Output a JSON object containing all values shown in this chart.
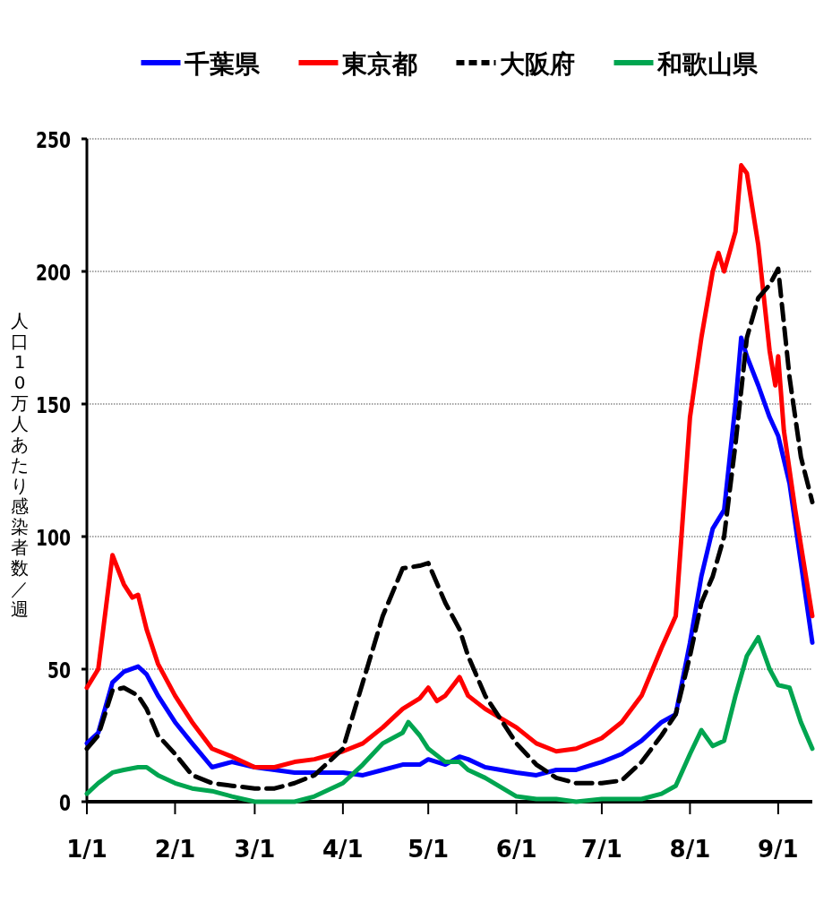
{
  "chart_data": {
    "type": "line",
    "ylabel": "人口10万人あたり感染者数／週",
    "legend": "top",
    "grid": "y",
    "marker": "none",
    "xlim": [
      "--01-01",
      "--09-13"
    ],
    "ylim": [
      0,
      250
    ],
    "xticks": [
      {
        "value": "--01-01",
        "label": "1/1"
      },
      {
        "value": "--02-01",
        "label": "2/1"
      },
      {
        "value": "--03-01",
        "label": "3/1"
      },
      {
        "value": "--04-01",
        "label": "4/1"
      },
      {
        "value": "--05-01",
        "label": "5/1"
      },
      {
        "value": "--06-01",
        "label": "6/1"
      },
      {
        "value": "--07-01",
        "label": "7/1"
      },
      {
        "value": "--08-01",
        "label": "8/1"
      },
      {
        "value": "--09-01",
        "label": "9/1"
      }
    ],
    "yticks": [
      0,
      50,
      100,
      150,
      200,
      250
    ],
    "series": [
      {
        "name": "千葉県",
        "color": "#0000ff",
        "line_style": "solid",
        "x": [
          "--01-01",
          "--01-05",
          "--01-10",
          "--01-14",
          "--01-19",
          "--01-22",
          "--01-26",
          "--02-01",
          "--02-07",
          "--02-14",
          "--02-21",
          "--03-01",
          "--03-08",
          "--03-15",
          "--03-22",
          "--04-01",
          "--04-08",
          "--04-15",
          "--04-22",
          "--04-28",
          "--05-01",
          "--05-07",
          "--05-12",
          "--05-15",
          "--05-21",
          "--06-01",
          "--06-08",
          "--06-15",
          "--06-22",
          "--07-01",
          "--07-08",
          "--07-15",
          "--07-22",
          "--07-27",
          "--08-01",
          "--08-05",
          "--08-09",
          "--08-13",
          "--08-17",
          "--08-19",
          "--08-21",
          "--08-25",
          "--08-29",
          "--09-01",
          "--09-05",
          "--09-09",
          "--09-13"
        ],
        "values": [
          22,
          26,
          45,
          49,
          51,
          48,
          40,
          30,
          22,
          13,
          15,
          13,
          12,
          11,
          11,
          11,
          10,
          12,
          14,
          14,
          16,
          14,
          17,
          16,
          13,
          11,
          10,
          12,
          12,
          15,
          18,
          23,
          30,
          33,
          60,
          85,
          103,
          110,
          150,
          175,
          168,
          157,
          145,
          138,
          120,
          90,
          60
        ]
      },
      {
        "name": "東京都",
        "color": "#ff0000",
        "line_style": "solid",
        "x": [
          "--01-01",
          "--01-05",
          "--01-10",
          "--01-14",
          "--01-17",
          "--01-19",
          "--01-22",
          "--01-26",
          "--02-01",
          "--02-07",
          "--02-14",
          "--02-21",
          "--03-01",
          "--03-08",
          "--03-15",
          "--03-22",
          "--04-01",
          "--04-08",
          "--04-15",
          "--04-22",
          "--04-28",
          "--05-01",
          "--05-04",
          "--05-07",
          "--05-12",
          "--05-15",
          "--05-21",
          "--06-01",
          "--06-08",
          "--06-15",
          "--06-22",
          "--07-01",
          "--07-08",
          "--07-15",
          "--07-22",
          "--07-27",
          "--08-01",
          "--08-05",
          "--08-09",
          "--08-11",
          "--08-13",
          "--08-17",
          "--08-19",
          "--08-21",
          "--08-25",
          "--08-29",
          "--08-31",
          "--09-01",
          "--09-03",
          "--09-07",
          "--09-13"
        ],
        "values": [
          43,
          50,
          93,
          82,
          77,
          78,
          65,
          52,
          40,
          30,
          20,
          17,
          13,
          13,
          15,
          16,
          19,
          22,
          28,
          35,
          39,
          43,
          38,
          40,
          47,
          40,
          35,
          28,
          22,
          19,
          20,
          24,
          30,
          40,
          58,
          70,
          145,
          175,
          200,
          207,
          200,
          215,
          240,
          237,
          210,
          170,
          157,
          168,
          140,
          110,
          70
        ]
      },
      {
        "name": "大阪府",
        "color": "#000000",
        "line_style": "dashed",
        "x": [
          "--01-01",
          "--01-05",
          "--01-10",
          "--01-14",
          "--01-19",
          "--01-22",
          "--01-26",
          "--02-01",
          "--02-07",
          "--02-14",
          "--02-21",
          "--03-01",
          "--03-08",
          "--03-15",
          "--03-22",
          "--04-01",
          "--04-08",
          "--04-15",
          "--04-22",
          "--04-28",
          "--05-01",
          "--05-07",
          "--05-12",
          "--05-15",
          "--05-21",
          "--06-01",
          "--06-08",
          "--06-15",
          "--06-22",
          "--07-01",
          "--07-08",
          "--07-15",
          "--07-22",
          "--07-27",
          "--08-01",
          "--08-05",
          "--08-09",
          "--08-13",
          "--08-17",
          "--08-21",
          "--08-25",
          "--08-29",
          "--09-01",
          "--09-05",
          "--09-09",
          "--09-13"
        ],
        "values": [
          20,
          25,
          42,
          43,
          40,
          35,
          25,
          18,
          10,
          7,
          6,
          5,
          5,
          7,
          10,
          20,
          45,
          70,
          88,
          89,
          90,
          75,
          65,
          55,
          40,
          22,
          14,
          9,
          7,
          7,
          8,
          15,
          25,
          33,
          55,
          75,
          85,
          100,
          135,
          175,
          190,
          195,
          201,
          160,
          130,
          113
        ]
      },
      {
        "name": "和歌山県",
        "color": "#00a550",
        "line_style": "solid",
        "x": [
          "--01-01",
          "--01-05",
          "--01-10",
          "--01-14",
          "--01-19",
          "--01-22",
          "--01-26",
          "--02-01",
          "--02-07",
          "--02-14",
          "--02-21",
          "--03-01",
          "--03-08",
          "--03-15",
          "--03-22",
          "--04-01",
          "--04-08",
          "--04-15",
          "--04-22",
          "--04-24",
          "--04-28",
          "--05-01",
          "--05-07",
          "--05-12",
          "--05-15",
          "--05-21",
          "--06-01",
          "--06-08",
          "--06-15",
          "--06-22",
          "--07-01",
          "--07-08",
          "--07-15",
          "--07-22",
          "--07-27",
          "--08-01",
          "--08-05",
          "--08-09",
          "--08-13",
          "--08-17",
          "--08-21",
          "--08-25",
          "--08-29",
          "--09-01",
          "--09-05",
          "--09-09",
          "--09-13"
        ],
        "values": [
          3,
          7,
          11,
          12,
          13,
          13,
          10,
          7,
          5,
          4,
          2,
          0,
          0,
          0,
          2,
          7,
          14,
          22,
          26,
          30,
          25,
          20,
          15,
          15,
          12,
          9,
          2,
          1,
          1,
          0,
          1,
          1,
          1,
          3,
          6,
          18,
          27,
          21,
          23,
          40,
          55,
          62,
          50,
          44,
          43,
          30,
          20
        ]
      }
    ]
  }
}
